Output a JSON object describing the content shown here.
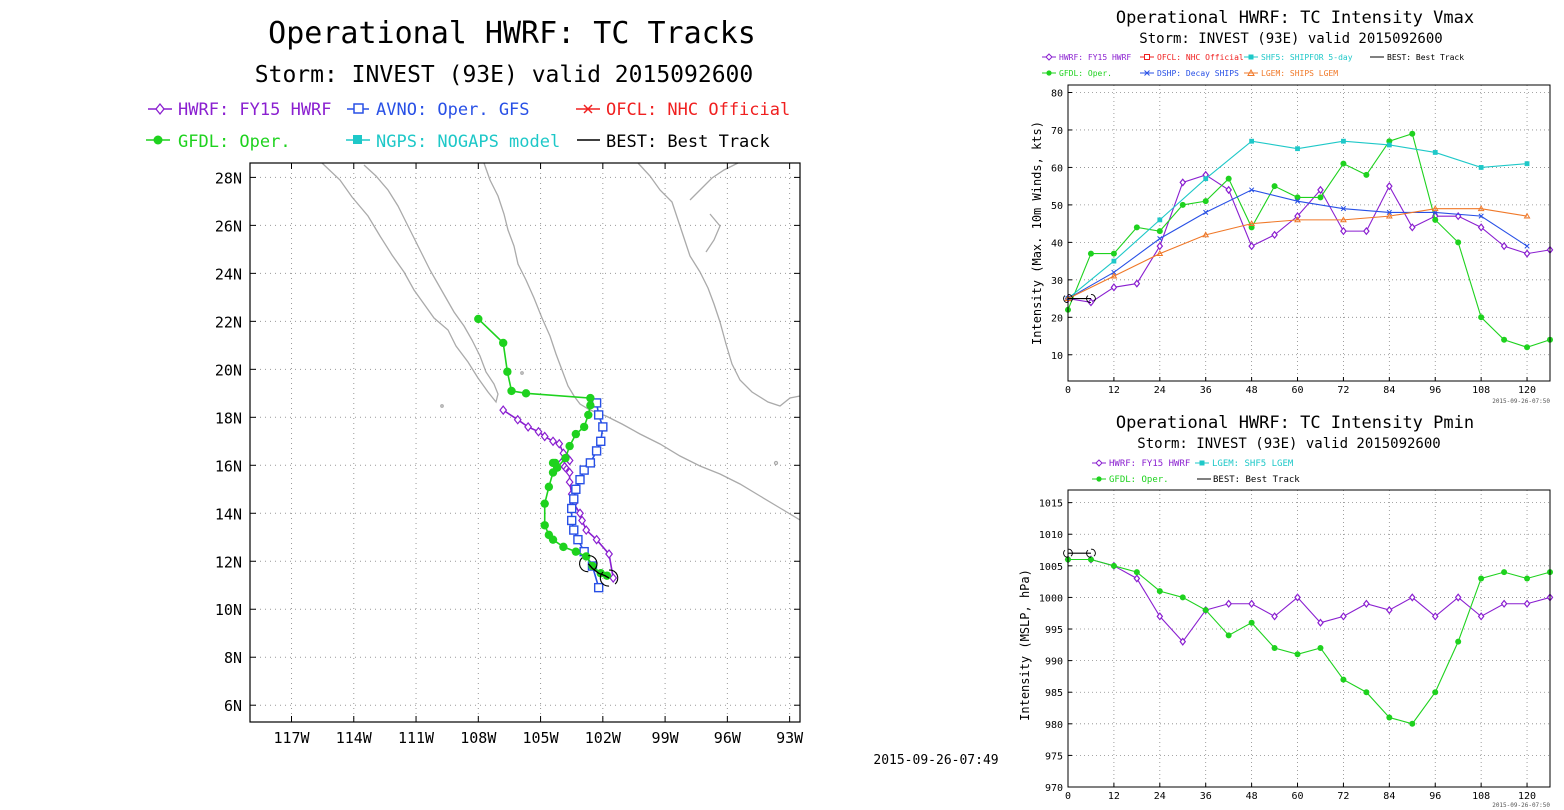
{
  "timestamp_main": "2015-09-26-07:49",
  "chart_data": [
    {
      "type": "line",
      "title": "Operational HWRF: TC Tracks",
      "subtitle": "Storm: INVEST (93E) valid 2015092600",
      "xlabel": "",
      "ylabel": "",
      "xlim": [
        -119,
        -92.5
      ],
      "ylim": [
        5.3,
        28.6
      ],
      "grid": true,
      "x_ticks": [
        -117,
        -114,
        -111,
        -108,
        -105,
        -102,
        -99,
        -96,
        -93
      ],
      "x_tick_labels": [
        "117W",
        "114W",
        "111W",
        "108W",
        "105W",
        "102W",
        "99W",
        "96W",
        "93W"
      ],
      "y_ticks": [
        6,
        8,
        10,
        12,
        14,
        16,
        18,
        20,
        22,
        24,
        26,
        28
      ],
      "y_tick_labels": [
        "6N",
        "8N",
        "10N",
        "12N",
        "14N",
        "16N",
        "18N",
        "20N",
        "22N",
        "24N",
        "26N",
        "28N"
      ],
      "legend": [
        {
          "label": "HWRF: FY15 HWRF",
          "color": "#8a1fd0",
          "marker": "diamond"
        },
        {
          "label": "AVNO: Oper. GFS",
          "color": "#2850e6",
          "marker": "square"
        },
        {
          "label": "OFCL: NHC Official",
          "color": "#f02020",
          "marker": "x"
        },
        {
          "label": "GFDL: Oper.",
          "color": "#1ed21e",
          "marker": "dot"
        },
        {
          "label": "NGPS: NOGAPS model",
          "color": "#1ec8c8",
          "marker": "filled-square"
        },
        {
          "label": "BEST: Best Track",
          "color": "#000000",
          "marker": "none"
        }
      ],
      "series": [
        {
          "name": "HWRF: FY15 HWRF",
          "color": "#8a1fd0",
          "marker": "diamond",
          "lon": [
            -101.5,
            -101.7,
            -102.3,
            -102.8,
            -103.0,
            -103.1,
            -103.4,
            -103.5,
            -103.6,
            -103.6,
            -103.8,
            -103.9,
            -104.0,
            -103.7,
            -103.6,
            -103.9,
            -104.1,
            -104.4,
            -104.8,
            -105.1,
            -105.6,
            -106.1,
            -106.8
          ],
          "lat": [
            11.3,
            12.3,
            12.9,
            13.3,
            13.7,
            14.0,
            14.4,
            14.8,
            15.3,
            15.7,
            15.9,
            16.0,
            16.1,
            16.3,
            16.2,
            16.5,
            16.9,
            17.0,
            17.2,
            17.4,
            17.6,
            17.9,
            18.3
          ]
        },
        {
          "name": "AVNO: Oper. GFS",
          "color": "#2850e6",
          "marker": "square",
          "lon": [
            -102.2,
            -102.5,
            -102.9,
            -103.2,
            -103.4,
            -103.5,
            -103.5,
            -103.4,
            -103.3,
            -103.1,
            -102.9,
            -102.6,
            -102.3,
            -102.1,
            -102.0,
            -102.2,
            -102.3
          ],
          "lat": [
            10.9,
            11.8,
            12.4,
            12.9,
            13.3,
            13.7,
            14.2,
            14.6,
            15.0,
            15.4,
            15.8,
            16.1,
            16.6,
            17.0,
            17.6,
            18.1,
            18.6
          ]
        },
        {
          "name": "GFDL: Oper.",
          "color": "#1ed21e",
          "marker": "dot",
          "lon": [
            -101.8,
            -102.1,
            -102.5,
            -102.8,
            -103.3,
            -103.9,
            -104.4,
            -104.6,
            -104.8,
            -104.8,
            -104.6,
            -104.4,
            -104.3,
            -104.4,
            -104.2,
            -103.8,
            -103.6,
            -103.3,
            -102.9,
            -102.7,
            -102.6,
            -102.6,
            -105.7,
            -106.4,
            -106.6,
            -106.8,
            -108.0
          ],
          "lat": [
            11.4,
            11.5,
            11.8,
            12.2,
            12.4,
            12.6,
            12.9,
            13.1,
            13.5,
            14.4,
            15.1,
            15.7,
            16.1,
            16.1,
            15.9,
            16.3,
            16.8,
            17.3,
            17.6,
            18.1,
            18.5,
            18.8,
            19.0,
            19.1,
            19.9,
            21.1,
            22.1
          ]
        },
        {
          "name": "BEST: Best Track",
          "color": "#000000",
          "marker": "none",
          "lon": [
            -101.7,
            -101.9,
            -102.2,
            -102.5,
            -102.7
          ],
          "lat": [
            11.3,
            11.4,
            11.5,
            11.7,
            11.9
          ]
        }
      ]
    },
    {
      "type": "line",
      "title": "Operational HWRF: TC Intensity Vmax",
      "subtitle": "Storm: INVEST (93E) valid 2015092600",
      "timestamp": "2015-09-26-07:50",
      "xlabel": "",
      "ylabel": "Intensity (Max. 10m Winds, kts)",
      "xlim": [
        0,
        126
      ],
      "ylim": [
        3,
        82
      ],
      "grid": true,
      "x_ticks": [
        0,
        12,
        24,
        36,
        48,
        60,
        72,
        84,
        96,
        108,
        120
      ],
      "y_ticks": [
        10,
        20,
        30,
        40,
        50,
        60,
        70,
        80
      ],
      "legend": [
        {
          "label": "HWRF: FY15 HWRF",
          "color": "#8a1fd0",
          "marker": "diamond"
        },
        {
          "label": "OFCL: NHC Official",
          "color": "#f02020",
          "marker": "x"
        },
        {
          "label": "SHF5: SHIPFOR 5-day",
          "color": "#1ec8c8",
          "marker": "filled-square"
        },
        {
          "label": "BEST: Best Track",
          "color": "#000000",
          "marker": "none"
        },
        {
          "label": "GFDL: Oper.",
          "color": "#1ed21e",
          "marker": "dot"
        },
        {
          "label": "DSHP: Decay SHIPS",
          "color": "#2850e6",
          "marker": "x"
        },
        {
          "label": "LGEM: SHIPS LGEM",
          "color": "#f07828",
          "marker": "triangle"
        }
      ],
      "series": [
        {
          "name": "HWRF: FY15 HWRF",
          "color": "#8a1fd0",
          "marker": "diamond",
          "x": [
            0,
            6,
            12,
            18,
            24,
            30,
            36,
            42,
            48,
            54,
            60,
            66,
            72,
            78,
            84,
            90,
            96,
            102,
            108,
            114,
            120,
            126
          ],
          "y": [
            25,
            24,
            28,
            29,
            39,
            56,
            58,
            54,
            39,
            42,
            47,
            54,
            43,
            43,
            55,
            44,
            47,
            47,
            44,
            39,
            37,
            38
          ]
        },
        {
          "name": "GFDL: Oper.",
          "color": "#1ed21e",
          "marker": "dot",
          "x": [
            0,
            6,
            12,
            18,
            24,
            30,
            36,
            42,
            48,
            54,
            60,
            66,
            72,
            78,
            84,
            90,
            96,
            102,
            108,
            114,
            120,
            126
          ],
          "y": [
            22,
            37,
            37,
            44,
            43,
            50,
            51,
            57,
            44,
            55,
            52,
            52,
            61,
            58,
            67,
            69,
            46,
            40,
            20,
            14,
            12,
            14
          ]
        },
        {
          "name": "SHF5: SHIPFOR 5-day",
          "color": "#1ec8c8",
          "marker": "filled-square",
          "x": [
            0,
            12,
            24,
            36,
            48,
            60,
            72,
            84,
            96,
            108,
            120
          ],
          "y": [
            25,
            35,
            46,
            57,
            67,
            65,
            67,
            66,
            64,
            60,
            61
          ]
        },
        {
          "name": "DSHP: Decay SHIPS",
          "color": "#2850e6",
          "marker": "x",
          "x": [
            0,
            12,
            24,
            36,
            48,
            60,
            72,
            84,
            96,
            108,
            120
          ],
          "y": [
            25,
            32,
            41,
            48,
            54,
            51,
            49,
            48,
            48,
            47,
            39
          ]
        },
        {
          "name": "LGEM: SHIPS LGEM",
          "color": "#f07828",
          "marker": "triangle",
          "x": [
            0,
            12,
            24,
            36,
            48,
            60,
            72,
            84,
            96,
            108,
            120
          ],
          "y": [
            25,
            31,
            37,
            42,
            45,
            46,
            46,
            47,
            49,
            49,
            47
          ]
        },
        {
          "name": "BEST: Best Track",
          "color": "#000000",
          "marker": "none",
          "x": [
            0,
            6
          ],
          "y": [
            25,
            25
          ]
        }
      ]
    },
    {
      "type": "line",
      "title": "Operational HWRF: TC Intensity Pmin",
      "subtitle": "Storm: INVEST (93E) valid 2015092600",
      "timestamp": "2015-09-26-07:50",
      "xlabel": "",
      "ylabel": "Intensity (MSLP, hPa)",
      "xlim": [
        0,
        126
      ],
      "ylim": [
        970,
        1017
      ],
      "grid": true,
      "x_ticks": [
        0,
        12,
        24,
        36,
        48,
        60,
        72,
        84,
        96,
        108,
        120
      ],
      "y_ticks": [
        970,
        975,
        980,
        985,
        990,
        995,
        1000,
        1005,
        1010,
        1015
      ],
      "legend": [
        {
          "label": "HWRF: FY15 HWRF",
          "color": "#8a1fd0",
          "marker": "diamond"
        },
        {
          "label": "LGEM: SHF5 LGEM",
          "color": "#1ec8c8",
          "marker": "filled-square"
        },
        {
          "label": "GFDL: Oper.",
          "color": "#1ed21e",
          "marker": "dot"
        },
        {
          "label": "BEST: Best Track",
          "color": "#000000",
          "marker": "none"
        }
      ],
      "series": [
        {
          "name": "HWRF: FY15 HWRF",
          "color": "#8a1fd0",
          "marker": "diamond",
          "x": [
            0,
            6,
            12,
            18,
            24,
            30,
            36,
            42,
            48,
            54,
            60,
            66,
            72,
            78,
            84,
            90,
            96,
            102,
            108,
            114,
            120,
            126
          ],
          "y": [
            1006,
            1006,
            1005,
            1003,
            997,
            993,
            998,
            999,
            999,
            997,
            1000,
            996,
            997,
            999,
            998,
            1000,
            997,
            1000,
            997,
            999,
            999,
            1000
          ]
        },
        {
          "name": "GFDL: Oper.",
          "color": "#1ed21e",
          "marker": "dot",
          "x": [
            0,
            6,
            12,
            18,
            24,
            30,
            36,
            42,
            48,
            54,
            60,
            66,
            72,
            78,
            84,
            90,
            96,
            102,
            108,
            114,
            120,
            126
          ],
          "y": [
            1006,
            1006,
            1005,
            1004,
            1001,
            1000,
            998,
            994,
            996,
            992,
            991,
            992,
            987,
            985,
            981,
            980,
            985,
            993,
            1003,
            1004,
            1003,
            1004
          ]
        },
        {
          "name": "BEST: Best Track",
          "color": "#000000",
          "marker": "none",
          "x": [
            0,
            6
          ],
          "y": [
            1007,
            1007
          ]
        }
      ]
    }
  ]
}
